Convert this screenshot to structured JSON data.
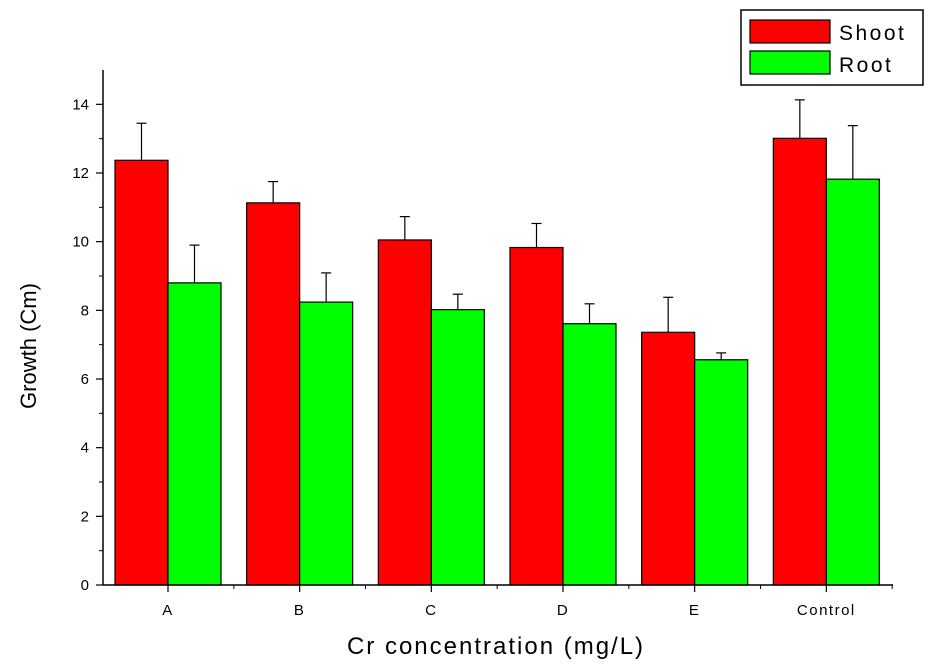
{
  "chart_data": {
    "type": "bar",
    "xlabel": "Cr concentration (mg/L)",
    "ylabel": "Growth (Cm)",
    "ylim": [
      0,
      15
    ],
    "yticks": [
      0,
      2,
      4,
      6,
      8,
      10,
      12,
      14
    ],
    "categories": [
      "A",
      "B",
      "C",
      "D",
      "E",
      "Control"
    ],
    "series": [
      {
        "name": "Shoot",
        "color": "#ff0000",
        "values": [
          12.37,
          11.13,
          10.05,
          9.83,
          7.36,
          13.01
        ],
        "errors": [
          1.08,
          0.62,
          0.68,
          0.7,
          1.02,
          1.12
        ]
      },
      {
        "name": "Root",
        "color": "#00ff00",
        "values": [
          8.8,
          8.24,
          8.02,
          7.61,
          6.56,
          11.82
        ],
        "errors": [
          1.1,
          0.85,
          0.45,
          0.58,
          0.2,
          1.56
        ]
      }
    ],
    "grid": false,
    "legend_position": "top-right"
  }
}
